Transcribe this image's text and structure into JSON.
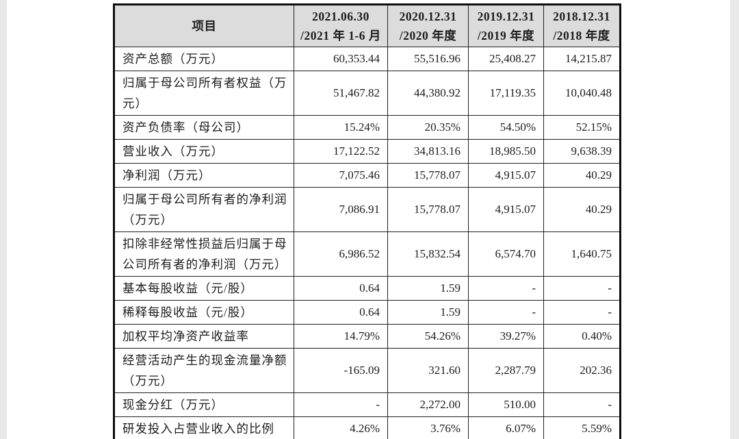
{
  "colors": {
    "page_bg": "#ffffff",
    "edge_strip": "#e9e9e9",
    "header_bg": "#dcdcdc",
    "border": "#1f1f1f",
    "text": "#1c1c1c"
  },
  "table": {
    "header": {
      "item_col": "项目",
      "columns": [
        {
          "date": "2021.06.30",
          "period": "/2021 年 1-6 月"
        },
        {
          "date": "2020.12.31",
          "period": "/2020 年度"
        },
        {
          "date": "2019.12.31",
          "period": "/2019 年度"
        },
        {
          "date": "2018.12.31",
          "period": "/2018 年度"
        }
      ]
    },
    "rows": [
      {
        "label": "资产总额（万元）",
        "values": [
          "60,353.44",
          "55,516.96",
          "25,408.27",
          "14,215.87"
        ]
      },
      {
        "label": "归属于母公司所有者权益（万元）",
        "values": [
          "51,467.82",
          "44,380.92",
          "17,119.35",
          "10,040.48"
        ]
      },
      {
        "label": "资产负债率（母公司）",
        "values": [
          "15.24%",
          "20.35%",
          "54.50%",
          "52.15%"
        ]
      },
      {
        "label": "营业收入（万元）",
        "values": [
          "17,122.52",
          "34,813.16",
          "18,985.50",
          "9,638.39"
        ]
      },
      {
        "label": "净利润（万元）",
        "values": [
          "7,075.46",
          "15,778.07",
          "4,915.07",
          "40.29"
        ]
      },
      {
        "label": "归属于母公司所有者的净利润（万元）",
        "values": [
          "7,086.91",
          "15,778.07",
          "4,915.07",
          "40.29"
        ]
      },
      {
        "label": "扣除非经常性损益后归属于母公司所有者的净利润（万元）",
        "values": [
          "6,986.52",
          "15,832.54",
          "6,574.70",
          "1,640.75"
        ]
      },
      {
        "label": "基本每股收益（元/股）",
        "values": [
          "0.64",
          "1.59",
          "-",
          "-"
        ]
      },
      {
        "label": "稀释每股收益（元/股）",
        "values": [
          "0.64",
          "1.59",
          "-",
          "-"
        ]
      },
      {
        "label": "加权平均净资产收益率",
        "values": [
          "14.79%",
          "54.26%",
          "39.27%",
          "0.40%"
        ]
      },
      {
        "label": "经营活动产生的现金流量净额（万元）",
        "values": [
          "-165.09",
          "321.60",
          "2,287.79",
          "202.36"
        ]
      },
      {
        "label": "现金分红（万元）",
        "values": [
          "-",
          "2,272.00",
          "510.00",
          "-"
        ]
      },
      {
        "label": "研发投入占营业收入的比例",
        "values": [
          "4.26%",
          "3.76%",
          "6.07%",
          "5.59%"
        ]
      }
    ]
  }
}
